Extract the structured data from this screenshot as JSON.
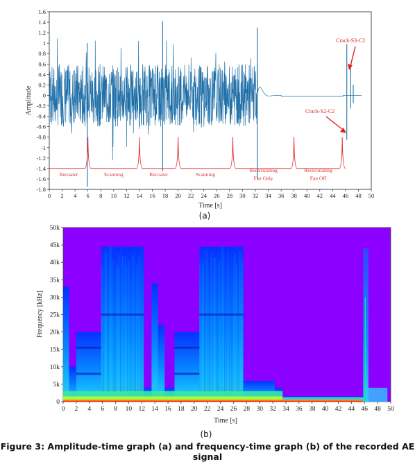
{
  "caption": "Figure 3: Amplitude-time graph (a) and frequency-time graph (b) of the recorded AE signal",
  "panels": {
    "a": "(a)",
    "b": "(b)"
  },
  "colors": {
    "signal": "#1f6fa8",
    "process_trace": "#e03030",
    "annotation": "#e02020",
    "spectrogram_bg": "#8c00ff"
  },
  "chart_data": [
    {
      "type": "line",
      "ylabel": "Amplitude",
      "xlabel": "Time [s]",
      "xlim": [
        0,
        50
      ],
      "ylim": [
        -1.8,
        1.6
      ],
      "x_ticks": [
        0,
        2,
        4,
        6,
        8,
        10,
        12,
        14,
        16,
        18,
        20,
        22,
        24,
        26,
        28,
        30,
        32,
        34,
        36,
        38,
        40,
        42,
        44,
        46,
        48,
        50
      ],
      "y_ticks": [
        "1.6",
        "1.4",
        "1.2",
        "1",
        "0.8",
        "0.6",
        "0.4",
        "0.2",
        "0",
        "-0.2",
        "-0.4",
        "-0.6",
        "-0.8",
        "-1",
        "-1.2",
        "-1.4",
        "-1.6",
        "-1.8"
      ],
      "grid": false,
      "phases": [
        {
          "label": "Recoater",
          "start": 0,
          "end": 6
        },
        {
          "label": "Scanning",
          "start": 6,
          "end": 14
        },
        {
          "label": "Recoater",
          "start": 14,
          "end": 20
        },
        {
          "label": "Scanning",
          "start": 20,
          "end": 28.5
        },
        {
          "label": "Recirculating Fan Only",
          "start": 28.5,
          "end": 38
        },
        {
          "label": "Recirculating Fan Off",
          "start": 38,
          "end": 45.5
        }
      ],
      "annotations": [
        {
          "label": "Crack-S3-C2",
          "x": 46.8,
          "y": 0.6
        },
        {
          "label": "Crack-S2-C2",
          "x": 46.3,
          "y": -0.7
        }
      ]
    },
    {
      "type": "heatmap",
      "ylabel": "Frequency [kHz]",
      "xlabel": "Time [s]",
      "xlim": [
        0,
        50
      ],
      "ylim": [
        0,
        50
      ],
      "x_ticks": [
        0,
        2,
        4,
        6,
        8,
        10,
        12,
        14,
        16,
        18,
        20,
        22,
        24,
        26,
        28,
        30,
        32,
        34,
        36,
        38,
        40,
        42,
        44,
        46,
        48,
        50
      ],
      "y_ticks": [
        "50k",
        "45k",
        "40k",
        "35k",
        "30k",
        "25k",
        "20k",
        "15k",
        "10k",
        "5k",
        "0"
      ],
      "grid": false
    }
  ]
}
